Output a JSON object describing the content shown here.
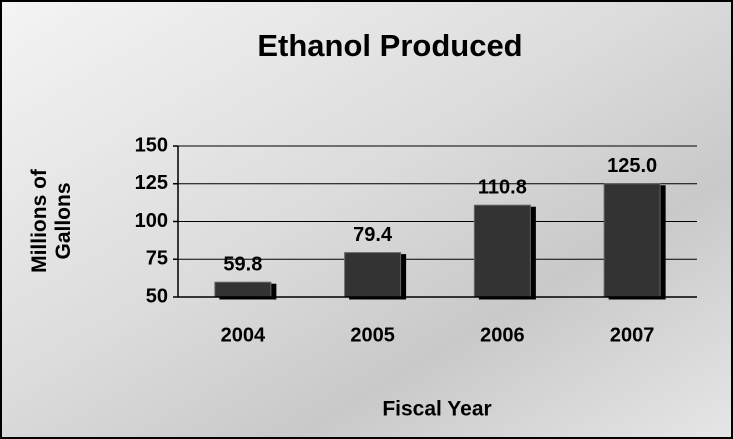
{
  "chart_data": {
    "type": "bar",
    "title": "Ethanol Produced",
    "x_label": "Fiscal Year",
    "y_label": "Millions of Gallons",
    "categories": [
      "2004",
      "2005",
      "2006",
      "2007"
    ],
    "values": [
      59.8,
      79.4,
      110.8,
      125.0
    ],
    "value_labels": [
      "59.8",
      "79.4",
      "110.8",
      "125.0"
    ],
    "color": "#333333",
    "ylim": [
      50,
      150
    ],
    "yticks": [
      50,
      75,
      100,
      125,
      150
    ],
    "grid": true
  }
}
